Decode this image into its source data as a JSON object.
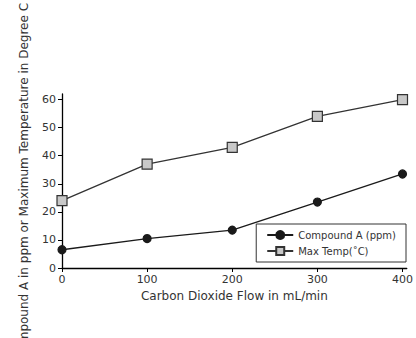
{
  "chart_data": {
    "type": "line",
    "xlabel": "Carbon Dioxide Flow in mL/min",
    "ylabel": "Compound A in ppm or Maximum Temperature in Degree C",
    "x": [
      0,
      100,
      200,
      300,
      400
    ],
    "series": [
      {
        "name": "Compound A (ppm)",
        "color": "#1a1a1a",
        "marker": "circle",
        "values": [
          6.5,
          10.5,
          13.5,
          23.5,
          33.5
        ]
      },
      {
        "name": "Max Temp(˚C)",
        "color": "#333333",
        "marker": "square",
        "values": [
          24,
          37,
          43,
          54,
          60
        ]
      }
    ],
    "xlim": [
      0,
      405
    ],
    "xticks": [
      0,
      100,
      200,
      300,
      400
    ],
    "ylim": [
      0,
      62
    ],
    "yticks": [
      0,
      10,
      20,
      30,
      40,
      50,
      60
    ],
    "grid": false,
    "legend": "lower right"
  }
}
